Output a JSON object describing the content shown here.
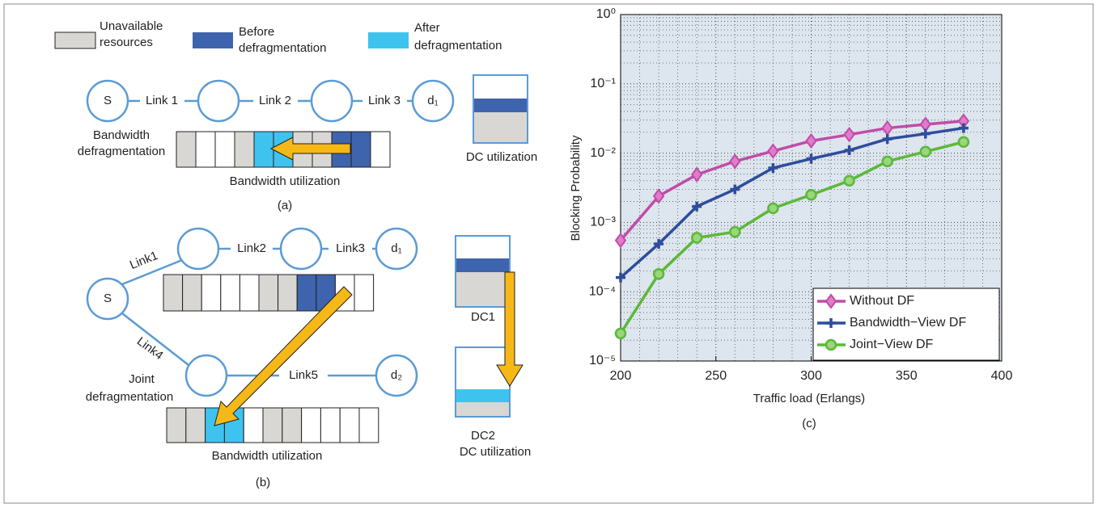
{
  "diagram": {
    "legend": [
      {
        "lines": [
          "Unavailable",
          "resources"
        ]
      },
      {
        "lines": [
          "Before",
          "defragmentation"
        ]
      },
      {
        "lines": [
          "After",
          "defragmentation"
        ]
      }
    ],
    "a": {
      "source": "S",
      "dest": "d₁",
      "links": [
        "Link 1",
        "Link 2",
        "Link 3"
      ],
      "method": [
        "Bandwidth",
        "defragmentation"
      ],
      "bar_label": "Bandwidth utilization",
      "dc_label": "DC utilization",
      "caption": "(a)"
    },
    "b": {
      "source": "S",
      "dest1": "d₁",
      "dest2": "d₂",
      "links": [
        "Link1",
        "Link2",
        "Link3",
        "Link4",
        "Link5"
      ],
      "method": [
        "Joint",
        "defragmentation"
      ],
      "bar_label": "Bandwidth utilization",
      "dc1": "DC1",
      "dc2": "DC2",
      "dc_label": "DC utilization",
      "caption": "(b)"
    },
    "c_caption": "(c)"
  },
  "chart_data": {
    "type": "line",
    "x_label": "Traffic load (Erlangs)",
    "y_label": "Blocking Probability",
    "x": [
      200,
      220,
      240,
      260,
      280,
      300,
      320,
      340,
      360,
      380
    ],
    "log_y": true,
    "grid": true,
    "legend": "lower right",
    "series": [
      {
        "name": "Without DF",
        "color": "#c04ca8",
        "marker": "diamond",
        "values": [
          0.00055,
          0.0024,
          0.0049,
          0.0076,
          0.0107,
          0.015,
          0.0185,
          0.023,
          0.026,
          0.029
        ]
      },
      {
        "name": "Bandwidth−View DF",
        "color": "#2e4d9c",
        "marker": "plus",
        "values": [
          0.00016,
          0.00049,
          0.0017,
          0.003,
          0.0061,
          0.0083,
          0.011,
          0.016,
          0.019,
          0.023
        ]
      },
      {
        "name": "Joint−View DF",
        "color": "#5cb83a",
        "marker": "circle",
        "values": [
          2.5e-05,
          0.00018,
          0.0006,
          0.00073,
          0.0016,
          0.0025,
          0.004,
          0.0076,
          0.0105,
          0.0145
        ]
      }
    ],
    "xlim": [
      200,
      400
    ],
    "xticks": [
      200,
      250,
      300,
      350,
      400
    ],
    "ylim": [
      1e-05,
      1
    ],
    "yticks": [
      {
        "value": 1e-05,
        "label": "10⁻⁵"
      },
      {
        "value": 0.0001,
        "label": "10⁻⁴"
      },
      {
        "value": 0.001,
        "label": "10⁻³"
      },
      {
        "value": 0.01,
        "label": "10⁻²"
      },
      {
        "value": 0.1,
        "label": "10⁻¹"
      },
      {
        "value": 1,
        "label": "10⁰"
      }
    ]
  }
}
